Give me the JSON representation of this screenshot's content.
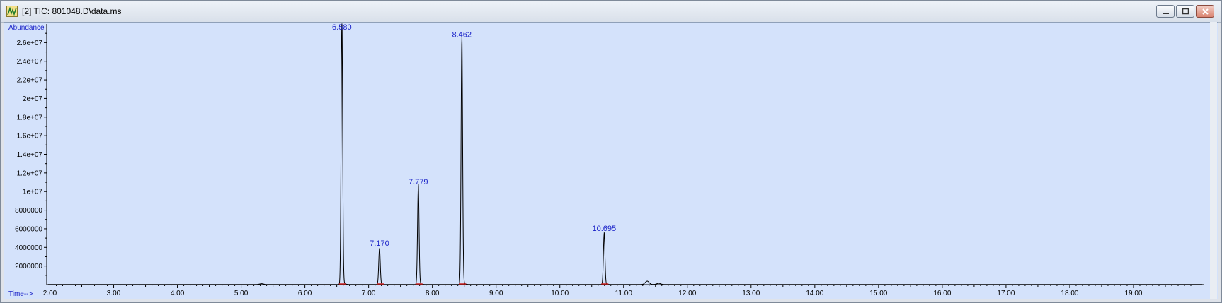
{
  "window": {
    "title": "[2] TIC: 801048.D\\data.ms",
    "controls": {
      "minimize": "minimize",
      "maximize": "maximize",
      "close": "close"
    },
    "icon": "chromatogram-app-icon"
  },
  "colors": {
    "plot_background": "#d4e2fb",
    "trace": "#000000",
    "label": "#1a22c8",
    "baseline_marker": "#cc2222"
  },
  "chart_data": {
    "type": "line",
    "title": "",
    "ylabel": "Abundance",
    "xlabel": "Time-->",
    "xlim": [
      1.95,
      20.1
    ],
    "ylim": [
      0,
      28000000
    ],
    "x_ticks": [
      2.0,
      3.0,
      4.0,
      5.0,
      6.0,
      7.0,
      8.0,
      9.0,
      10.0,
      11.0,
      12.0,
      13.0,
      14.0,
      15.0,
      16.0,
      17.0,
      18.0,
      19.0
    ],
    "x_tick_labels": [
      "2.00",
      "3.00",
      "4.00",
      "5.00",
      "6.00",
      "7.00",
      "8.00",
      "9.00",
      "10.00",
      "11.00",
      "12.00",
      "13.00",
      "14.00",
      "15.00",
      "16.00",
      "17.00",
      "18.00",
      "19.00"
    ],
    "y_ticks": [
      2000000,
      4000000,
      6000000,
      8000000,
      10000000,
      12000000,
      14000000,
      16000000,
      18000000,
      20000000,
      22000000,
      24000000,
      26000000
    ],
    "y_tick_labels": [
      "2000000",
      "4000000",
      "6000000",
      "8000000",
      "1e+07",
      "1.2e+07",
      "1.4e+07",
      "1.6e+07",
      "1.8e+07",
      "2e+07",
      "2.2e+07",
      "2.4e+07",
      "2.6e+07"
    ],
    "peaks": [
      {
        "label": "6.580",
        "rt": 6.58,
        "height": 28000000
      },
      {
        "label": "7.170",
        "rt": 7.17,
        "height": 3800000
      },
      {
        "label": "7.779",
        "rt": 7.779,
        "height": 10400000
      },
      {
        "label": "8.462",
        "rt": 8.462,
        "height": 26200000
      },
      {
        "label": "10.695",
        "rt": 10.695,
        "height": 5400000
      }
    ],
    "minor_features": [
      {
        "rt": 5.32,
        "height": 80000
      },
      {
        "rt": 11.37,
        "height": 350000
      },
      {
        "rt": 11.55,
        "height": 120000
      }
    ],
    "grid": false,
    "legend": "none"
  }
}
